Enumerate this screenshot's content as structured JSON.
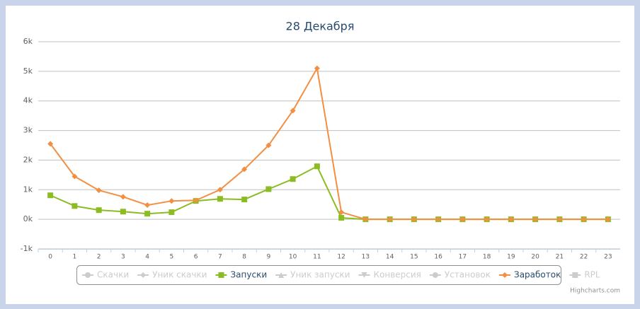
{
  "chart_data": {
    "type": "line",
    "title": "28 Декабря",
    "categories": [
      "0",
      "1",
      "2",
      "3",
      "4",
      "5",
      "6",
      "7",
      "8",
      "9",
      "10",
      "11",
      "12",
      "13",
      "14",
      "15",
      "16",
      "17",
      "18",
      "19",
      "20",
      "21",
      "22",
      "23"
    ],
    "ylim": [
      -1000,
      6000
    ],
    "yticks": [
      {
        "value": -1000,
        "label": "-1k"
      },
      {
        "value": 0,
        "label": "0k"
      },
      {
        "value": 1000,
        "label": "1k"
      },
      {
        "value": 2000,
        "label": "2k"
      },
      {
        "value": 3000,
        "label": "3k"
      },
      {
        "value": 4000,
        "label": "4k"
      },
      {
        "value": 5000,
        "label": "5k"
      },
      {
        "value": 6000,
        "label": "6k"
      }
    ],
    "grid": true,
    "series": [
      {
        "name": "Скачки",
        "color": "#cccccc",
        "marker": "circle",
        "visible": false
      },
      {
        "name": "Уник скачки",
        "color": "#cccccc",
        "marker": "diamond",
        "visible": false
      },
      {
        "name": "Запуски",
        "color": "#8bbc21",
        "marker": "square",
        "visible": true,
        "values": [
          810,
          450,
          310,
          260,
          190,
          240,
          620,
          690,
          670,
          1020,
          1360,
          1790,
          50,
          0,
          0,
          0,
          0,
          0,
          0,
          0,
          0,
          0,
          0,
          0
        ]
      },
      {
        "name": "Уник запуски",
        "color": "#cccccc",
        "marker": "triangle",
        "visible": false
      },
      {
        "name": "Конверсия",
        "color": "#cccccc",
        "marker": "triangle-down",
        "visible": false
      },
      {
        "name": "Установок",
        "color": "#cccccc",
        "marker": "circle",
        "visible": false
      },
      {
        "name": "Заработок",
        "color": "#f28f43",
        "marker": "diamond",
        "visible": true,
        "values": [
          2550,
          1450,
          980,
          760,
          480,
          620,
          640,
          1000,
          1690,
          2500,
          3670,
          5100,
          240,
          0,
          0,
          0,
          0,
          0,
          0,
          0,
          0,
          0,
          0,
          0
        ]
      },
      {
        "name": "RPL",
        "color": "#cccccc",
        "marker": "square",
        "visible": false
      }
    ],
    "credit": "Highcharts.com"
  }
}
